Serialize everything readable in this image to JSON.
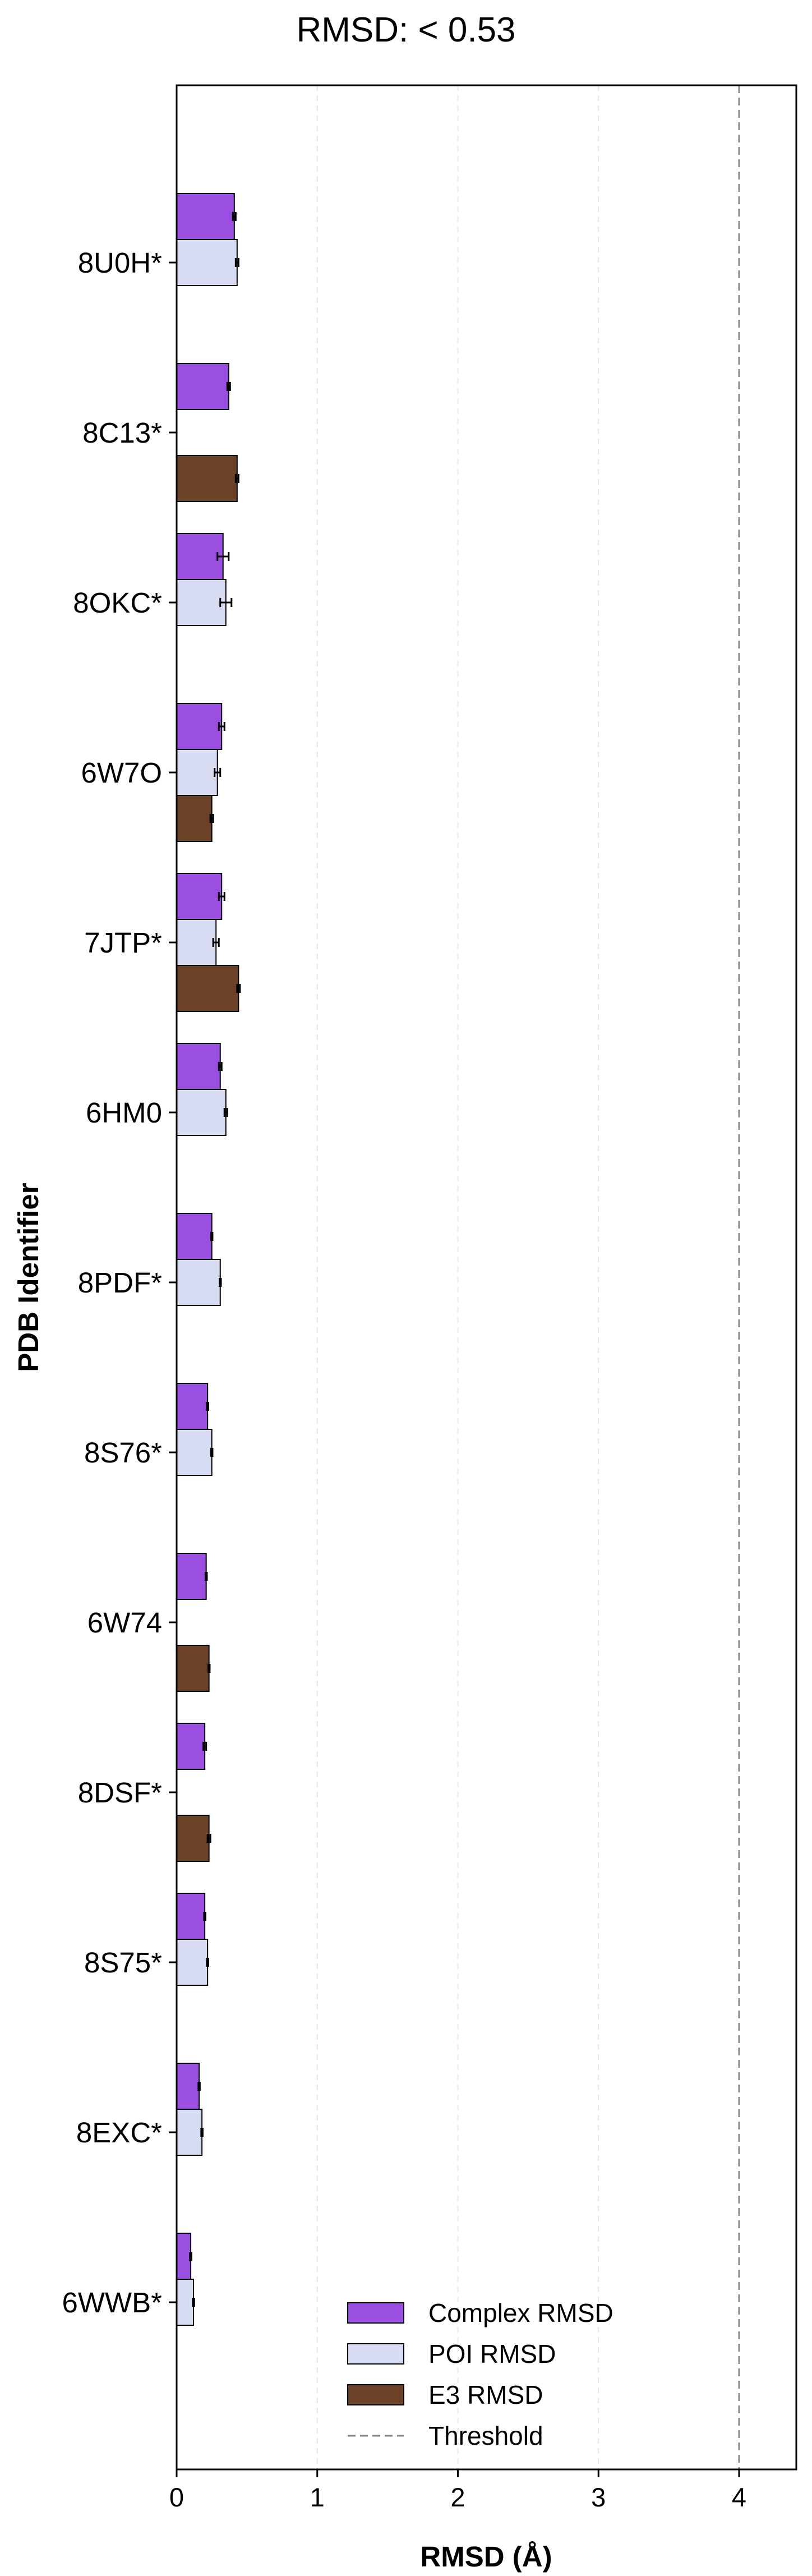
{
  "chart_data": {
    "type": "bar",
    "orientation": "horizontal",
    "title": "RMSD: < 0.53",
    "xlabel": "RMSD (Å)",
    "ylabel": "PDB Identifier",
    "xlim": [
      0,
      4.4
    ],
    "xticks": [
      "0",
      "1",
      "2",
      "3",
      "4"
    ],
    "grid": "vertical dashed",
    "legend_position": "bottom-right",
    "colors": {
      "complex": "#9b4fe0",
      "poi": "#d8dcf2",
      "e3": "#6b4228",
      "threshold": "#888888"
    },
    "threshold": 4.0,
    "series": [
      {
        "name": "Complex RMSD",
        "key": "complex"
      },
      {
        "name": "POI RMSD",
        "key": "poi"
      },
      {
        "name": "E3 RMSD",
        "key": "e3"
      }
    ],
    "threshold_label": "Threshold",
    "categories": [
      "8U0H*",
      "8C13*",
      "8OKC*",
      "6W7O",
      "7JTP*",
      "6HM0",
      "8PDF*",
      "8S76*",
      "6W74",
      "8DSF*",
      "8S75*",
      "8EXC*",
      "6WWB*"
    ],
    "rows": [
      {
        "complex": 0.41,
        "complex_err": 0.01,
        "poi": 0.43,
        "poi_err": 0.01,
        "e3": null
      },
      {
        "complex": 0.37,
        "complex_err": 0.01,
        "poi": null,
        "e3": 0.43,
        "e3_err": 0.01
      },
      {
        "complex": 0.33,
        "complex_err": 0.04,
        "poi": 0.35,
        "poi_err": 0.04,
        "e3": null
      },
      {
        "complex": 0.32,
        "complex_err": 0.02,
        "poi": 0.29,
        "poi_err": 0.02,
        "e3": 0.25,
        "e3_err": 0.01
      },
      {
        "complex": 0.32,
        "complex_err": 0.02,
        "poi": 0.28,
        "poi_err": 0.02,
        "e3": 0.44,
        "e3_err": 0.01
      },
      {
        "complex": 0.31,
        "complex_err": 0.01,
        "poi": 0.35,
        "poi_err": 0.01,
        "e3": null
      },
      {
        "complex": 0.25,
        "complex_err": 0.005,
        "poi": 0.31,
        "poi_err": 0.005,
        "e3": null
      },
      {
        "complex": 0.22,
        "complex_err": 0.005,
        "poi": 0.25,
        "poi_err": 0.005,
        "e3": null
      },
      {
        "complex": 0.21,
        "complex_err": 0.005,
        "poi": null,
        "e3": 0.23,
        "e3_err": 0.005
      },
      {
        "complex": 0.2,
        "complex_err": 0.01,
        "poi": null,
        "e3": 0.23,
        "e3_err": 0.01
      },
      {
        "complex": 0.2,
        "complex_err": 0.005,
        "poi": 0.22,
        "poi_err": 0.005,
        "e3": null
      },
      {
        "complex": 0.16,
        "complex_err": 0.005,
        "poi": 0.18,
        "poi_err": 0.005,
        "e3": null
      },
      {
        "complex": 0.1,
        "complex_err": 0.005,
        "poi": 0.12,
        "poi_err": 0.005,
        "e3": null
      }
    ]
  }
}
